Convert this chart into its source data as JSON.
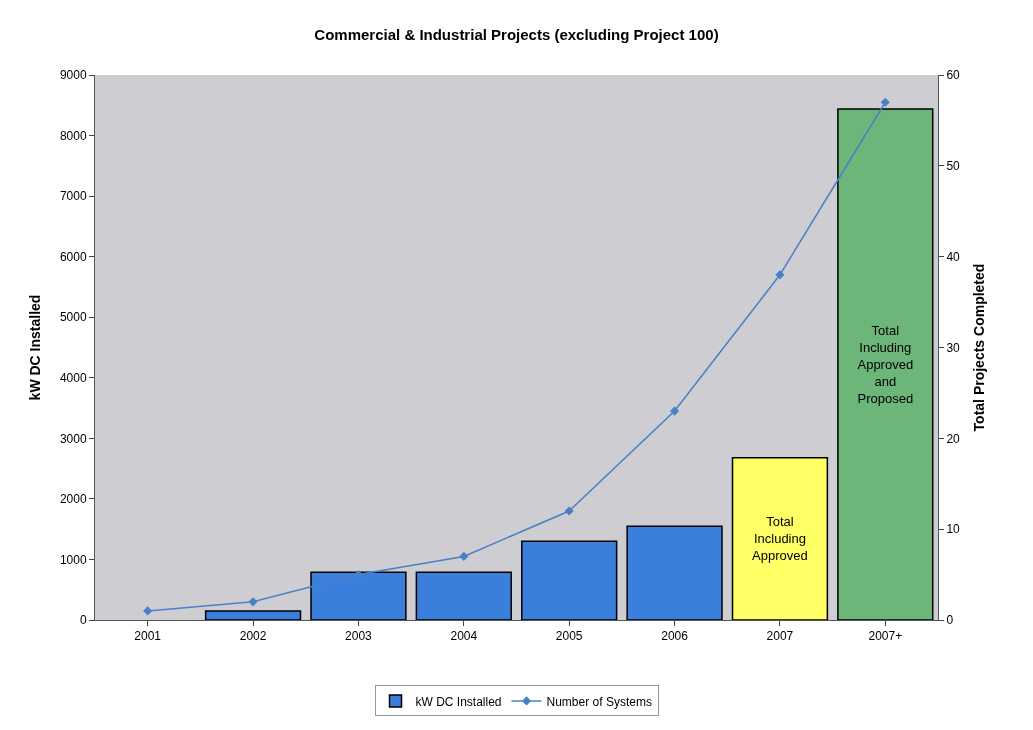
{
  "chart_data": {
    "type": "bar",
    "title": "Commercial & Industrial Projects (excluding Project 100)",
    "categories": [
      "2001",
      "2002",
      "2003",
      "2004",
      "2005",
      "2006",
      "2007",
      "2007+"
    ],
    "ylabel": "kW DC Installed",
    "y2label": "Total Projects Completed",
    "ylim": [
      0,
      9000
    ],
    "yticks": [
      0,
      1000,
      2000,
      3000,
      4000,
      5000,
      6000,
      7000,
      8000,
      9000
    ],
    "y2lim": [
      0,
      60
    ],
    "y2ticks": [
      0,
      10,
      20,
      30,
      40,
      50,
      60
    ],
    "series": [
      {
        "name": "kW DC Installed",
        "color": "#3a7fdc",
        "colors": [
          "#3a7fdc",
          "#3a7fdc",
          "#3a7fdc",
          "#3a7fdc",
          "#3a7fdc",
          "#3a7fdc",
          "#ffff66",
          "#6db67a"
        ],
        "values": [
          null,
          150,
          790,
          790,
          1300,
          1550,
          2680,
          8440
        ],
        "value_labels": [
          null,
          null,
          null,
          null,
          null,
          null,
          "Total\nIncluding\nApproved",
          "Total\nIncluding\nApproved\nand\nProposed"
        ]
      },
      {
        "name": "Number of Systems",
        "type": "line",
        "axis": "y2",
        "color": "#4a7fc8",
        "marker": "diamond",
        "values": [
          1,
          2,
          5,
          7,
          12,
          23,
          38,
          57
        ]
      }
    ],
    "grid": false,
    "legend": "bottom"
  }
}
